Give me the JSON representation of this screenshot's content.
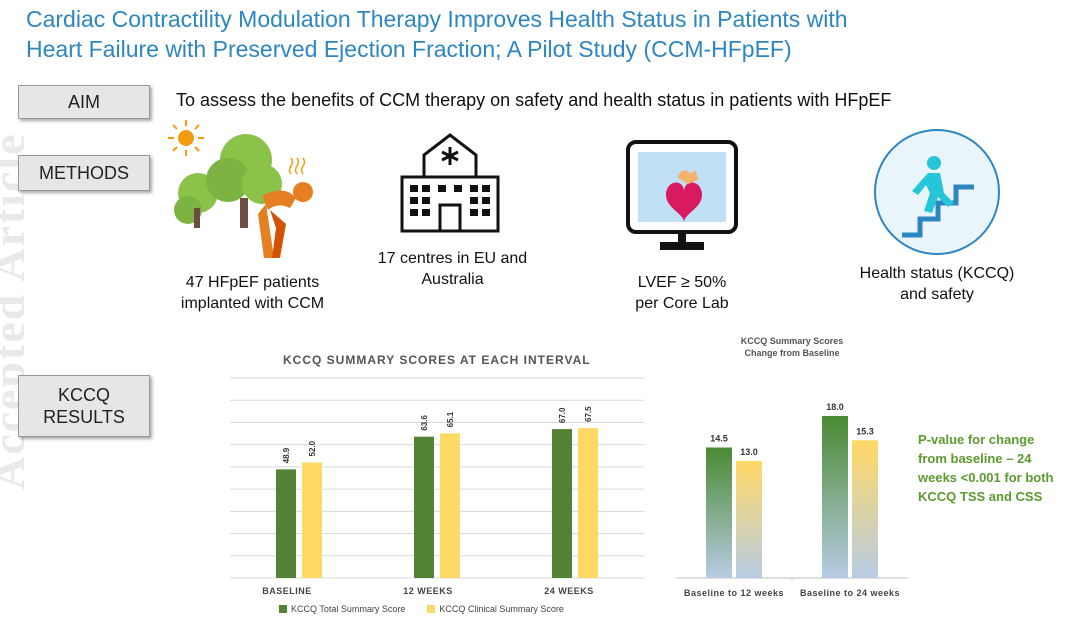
{
  "watermark": "Accepted Article",
  "title": {
    "line1": "Cardiac Contractility Modulation Therapy Improves Health Status in Patients with",
    "line2": "Heart Failure with Preserved Ejection Fraction; A Pilot Study (CCM-HFpEF)"
  },
  "labels": {
    "aim": "AIM",
    "methods": "METHODS",
    "results_line1": "KCCQ",
    "results_line2": "RESULTS"
  },
  "aim_text": "To assess the benefits of CCM therapy on safety and health status in patients with HFpEF",
  "methods": [
    {
      "icon": "patient-with-trees-icon",
      "line1": "47 HFpEF patients",
      "line2": "implanted with CCM"
    },
    {
      "icon": "hospital-building-icon",
      "line1": "17 centres in EU and",
      "line2": "Australia"
    },
    {
      "icon": "heart-monitor-icon",
      "line1": "LVEF ≥ 50%",
      "line2": "per Core Lab"
    },
    {
      "icon": "climbing-stairs-icon",
      "line1": "Health status (KCCQ)",
      "line2": "and safety"
    }
  ],
  "colors": {
    "title_blue": "#2e86c1",
    "total_green": "#548235",
    "clinical_yellow": "#ffd966",
    "pvalue_green": "#5b9a2f",
    "change_top_green": "#4a8a32",
    "change_bottom_blue": "#b8cce4"
  },
  "chart_data": [
    {
      "type": "bar",
      "title": "KCCQ SUMMARY SCORES AT EACH INTERVAL",
      "categories": [
        "BASELINE",
        "12 WEEKS",
        "24 WEEKS"
      ],
      "series": [
        {
          "name": "KCCQ Total Summary Score",
          "values": [
            48.9,
            63.6,
            67.0
          ],
          "labels": [
            "48.9",
            "63.6",
            "67.0"
          ]
        },
        {
          "name": "KCCQ Clinical Summary Score",
          "values": [
            52.0,
            65.1,
            67.5
          ],
          "labels": [
            "52.0",
            "65.1",
            "67.5"
          ]
        }
      ],
      "ylim": [
        0,
        90
      ],
      "grid": true,
      "legend": "bottom"
    },
    {
      "type": "bar",
      "title_line1": "KCCQ Summary Scores",
      "title_line2": "Change from Baseline",
      "categories": [
        "Baseline to 12 weeks",
        "Baseline to 24 weeks"
      ],
      "series": [
        {
          "values": [
            14.5,
            18.0
          ],
          "labels": [
            "14.5",
            "18.0"
          ]
        },
        {
          "values": [
            13.0,
            15.3
          ],
          "labels": [
            "13.0",
            "15.3"
          ]
        }
      ],
      "ylim": [
        0,
        20
      ],
      "grid": false
    }
  ],
  "pvalue": {
    "line1": "P-value for change",
    "line2": "from baseline – 24",
    "line3": "weeks <0.001 for both",
    "line4": "KCCQ TSS and CSS"
  }
}
